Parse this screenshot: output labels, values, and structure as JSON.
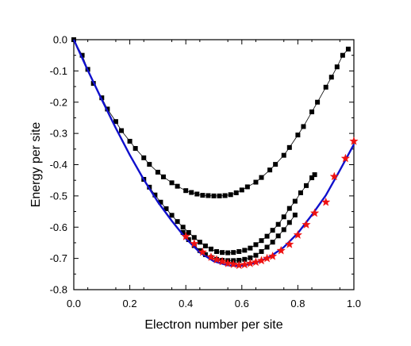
{
  "chart_data": {
    "type": "line",
    "title": "",
    "xlabel": "Electron number per site",
    "ylabel": "Energy per site",
    "xlim": [
      0.0,
      1.0
    ],
    "ylim": [
      -0.8,
      0.0
    ],
    "xticks": [
      0.0,
      0.2,
      0.4,
      0.6,
      0.8,
      1.0
    ],
    "xtick_labels": [
      "0.0",
      "0.2",
      "0.4",
      "0.6",
      "0.8",
      "1.0"
    ],
    "yticks": [
      0.0,
      -0.1,
      -0.2,
      -0.3,
      -0.4,
      -0.5,
      -0.6,
      -0.7,
      -0.8
    ],
    "ytick_labels": [
      "0.0",
      "-0.1",
      "-0.2",
      "-0.3",
      "-0.4",
      "-0.5",
      "-0.6",
      "-0.7",
      "-0.8"
    ],
    "grid": false,
    "legend": "none",
    "series": [
      {
        "kind": "line",
        "color": "#1010cc",
        "x": [
          0.0,
          0.05,
          0.1,
          0.15,
          0.2,
          0.25,
          0.3,
          0.35,
          0.4,
          0.45,
          0.5,
          0.55,
          0.58,
          0.6,
          0.65,
          0.7,
          0.75,
          0.8,
          0.85,
          0.9,
          0.95,
          1.0
        ],
        "y": [
          0.0,
          -0.098,
          -0.192,
          -0.283,
          -0.369,
          -0.448,
          -0.519,
          -0.58,
          -0.636,
          -0.681,
          -0.709,
          -0.722,
          -0.724,
          -0.723,
          -0.714,
          -0.695,
          -0.664,
          -0.619,
          -0.561,
          -0.498,
          -0.418,
          -0.335
        ]
      },
      {
        "kind": "squares-line",
        "color": "#000000",
        "x": [
          0.0,
          0.03,
          0.05,
          0.07,
          0.1,
          0.12,
          0.15,
          0.17,
          0.2,
          0.22,
          0.25,
          0.27,
          0.3,
          0.32,
          0.35,
          0.37,
          0.4,
          0.42,
          0.44,
          0.46,
          0.48,
          0.5,
          0.52,
          0.54,
          0.56,
          0.58,
          0.6,
          0.62,
          0.65,
          0.67,
          0.7,
          0.72,
          0.75,
          0.77,
          0.8,
          0.82,
          0.85,
          0.87,
          0.9,
          0.92,
          0.94,
          0.96,
          0.98
        ],
        "y": [
          0.0,
          -0.05,
          -0.095,
          -0.14,
          -0.186,
          -0.222,
          -0.262,
          -0.291,
          -0.325,
          -0.348,
          -0.378,
          -0.399,
          -0.424,
          -0.439,
          -0.458,
          -0.469,
          -0.483,
          -0.489,
          -0.494,
          -0.498,
          -0.499,
          -0.5,
          -0.5,
          -0.499,
          -0.496,
          -0.49,
          -0.481,
          -0.471,
          -0.456,
          -0.441,
          -0.417,
          -0.399,
          -0.37,
          -0.345,
          -0.305,
          -0.278,
          -0.231,
          -0.2,
          -0.152,
          -0.12,
          -0.087,
          -0.05,
          -0.03
        ]
      },
      {
        "kind": "squares-line",
        "color": "#000000",
        "x": [
          0.25,
          0.27,
          0.29,
          0.31,
          0.33,
          0.35,
          0.37,
          0.39,
          0.41,
          0.43,
          0.45,
          0.47,
          0.49,
          0.51,
          0.53,
          0.55,
          0.57,
          0.59,
          0.61,
          0.63,
          0.65,
          0.67,
          0.69,
          0.71,
          0.73,
          0.75,
          0.77,
          0.79,
          0.81,
          0.83,
          0.85,
          0.86
        ],
        "y": [
          -0.447,
          -0.472,
          -0.497,
          -0.52,
          -0.541,
          -0.562,
          -0.582,
          -0.6,
          -0.617,
          -0.633,
          -0.648,
          -0.66,
          -0.67,
          -0.678,
          -0.681,
          -0.682,
          -0.681,
          -0.678,
          -0.674,
          -0.667,
          -0.656,
          -0.643,
          -0.629,
          -0.61,
          -0.591,
          -0.567,
          -0.54,
          -0.517,
          -0.49,
          -0.467,
          -0.442,
          -0.432
        ]
      },
      {
        "kind": "squares-line",
        "color": "#000000",
        "x": [
          0.39,
          0.41,
          0.43,
          0.45,
          0.47,
          0.49,
          0.51,
          0.53,
          0.55,
          0.57,
          0.59,
          0.61,
          0.63,
          0.65,
          0.67,
          0.69,
          0.71,
          0.73,
          0.75,
          0.77,
          0.79
        ],
        "y": [
          -0.617,
          -0.64,
          -0.659,
          -0.675,
          -0.688,
          -0.697,
          -0.703,
          -0.706,
          -0.707,
          -0.707,
          -0.706,
          -0.703,
          -0.698,
          -0.69,
          -0.678,
          -0.664,
          -0.648,
          -0.628,
          -0.608,
          -0.585,
          -0.561
        ]
      },
      {
        "kind": "stars",
        "color": "#ee1111",
        "x": [
          0.4,
          0.43,
          0.46,
          0.49,
          0.51,
          0.53,
          0.55,
          0.57,
          0.59,
          0.61,
          0.63,
          0.65,
          0.67,
          0.69,
          0.71,
          0.74,
          0.77,
          0.8,
          0.83,
          0.86,
          0.9,
          0.93,
          0.97,
          1.0
        ],
        "y": [
          -0.63,
          -0.653,
          -0.68,
          -0.696,
          -0.704,
          -0.71,
          -0.716,
          -0.719,
          -0.722,
          -0.72,
          -0.716,
          -0.712,
          -0.707,
          -0.7,
          -0.693,
          -0.675,
          -0.655,
          -0.625,
          -0.592,
          -0.555,
          -0.52,
          -0.438,
          -0.38,
          -0.325
        ]
      }
    ]
  }
}
